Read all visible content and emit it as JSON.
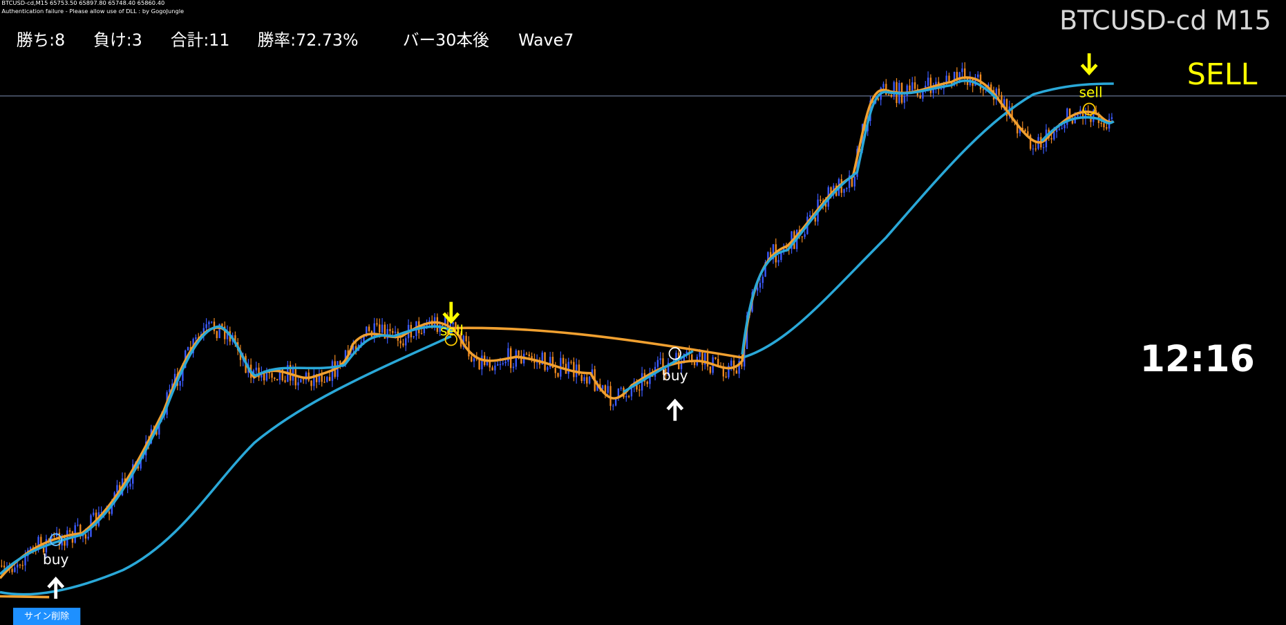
{
  "header": {
    "symbol_line": "BTCUSD-cd,M15  65753.50 65897.80 65748.40 65860.40",
    "auth_message": "Authentication failure - Please allow use of DLL : by GogoJungle"
  },
  "stats": [
    "勝ち:8",
    "負け:3",
    "合計:11",
    "勝率:72.73%",
    "バー30本後",
    "Wave7"
  ],
  "title": "BTCUSD-cd M15",
  "signal": "SELL",
  "clock": "12:16",
  "markers": [
    {
      "label": "buy"
    },
    {
      "label": "sell"
    },
    {
      "label": "buy"
    },
    {
      "label": "sell"
    }
  ],
  "button": "サイン削除"
}
